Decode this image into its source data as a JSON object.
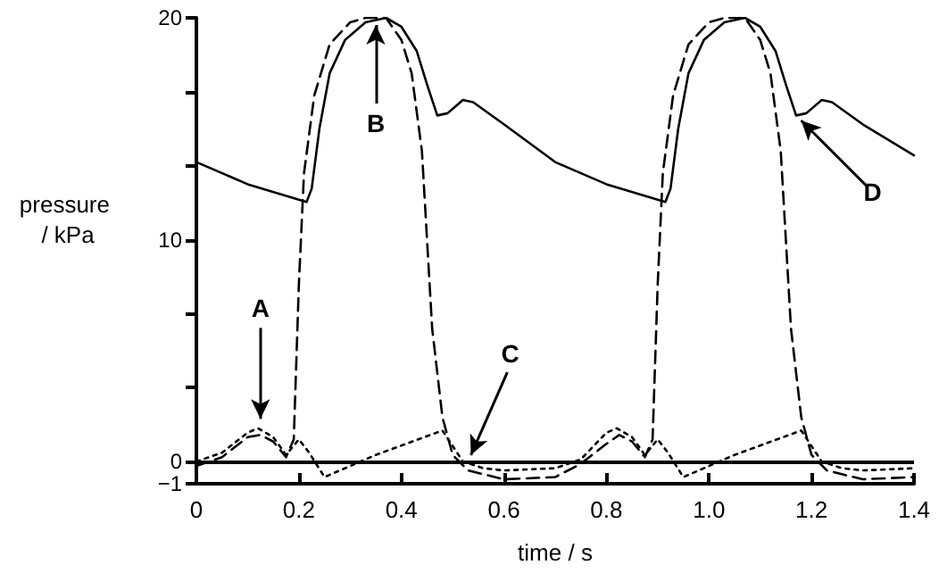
{
  "chart_data": {
    "type": "line",
    "xlabel": "time / s",
    "ylabel": "pressure / kPa",
    "xlim": [
      0,
      1.4
    ],
    "xticks": [
      0,
      0.2,
      0.4,
      0.6,
      0.8,
      {
        "value": 1,
        "label": "1.0"
      },
      1.2,
      1.4
    ],
    "ylim": [
      -1,
      20
    ],
    "yticks": [
      {
        "value": -1,
        "label": "−1"
      },
      0,
      {
        "value": 3.333,
        "label": null
      },
      {
        "value": 6.667,
        "label": null
      },
      10,
      {
        "value": 13.333,
        "label": null
      },
      {
        "value": 16.667,
        "label": null
      },
      20
    ],
    "grid": false,
    "marker": "none",
    "series": [
      {
        "color": "#000000",
        "line_style": "solid",
        "x": [
          0,
          0.1,
          0.2,
          0.215,
          0.225,
          0.24,
          0.26,
          0.29,
          0.33,
          0.37,
          0.4,
          0.43,
          0.45,
          0.47,
          0.49,
          0.52,
          0.54,
          0.6,
          0.7,
          0.8,
          0.9,
          0.915,
          0.925,
          0.94,
          0.96,
          0.99,
          1.03,
          1.07,
          1.1,
          1.13,
          1.15,
          1.17,
          1.19,
          1.22,
          1.24,
          1.3,
          1.4
        ],
        "values": [
          13.5,
          12.5,
          11.8,
          11.7,
          12.3,
          15,
          17.5,
          19,
          19.8,
          20,
          19.6,
          18.5,
          17,
          15.6,
          15.7,
          16.3,
          16.2,
          15.2,
          13.5,
          12.5,
          11.8,
          11.7,
          12.3,
          15,
          17.5,
          19,
          19.8,
          20,
          19.6,
          18.5,
          17,
          15.6,
          15.7,
          16.3,
          16.2,
          15.2,
          13.8
        ]
      },
      {
        "color": "#000000",
        "line_style": "dashed",
        "x": [
          0,
          0.05,
          0.1,
          0.125,
          0.15,
          0.175,
          0.19,
          0.2,
          0.21,
          0.23,
          0.26,
          0.3,
          0.33,
          0.37,
          0.4,
          0.42,
          0.44,
          0.46,
          0.48,
          0.5,
          0.53,
          0.6,
          0.7,
          0.75,
          0.8,
          0.825,
          0.85,
          0.875,
          0.89,
          0.9,
          0.91,
          0.93,
          0.96,
          1.0,
          1.03,
          1.07,
          1.1,
          1.12,
          1.14,
          1.16,
          1.18,
          1.2,
          1.23,
          1.3,
          1.4
        ],
        "values": [
          -0.2,
          0.2,
          1.1,
          1.2,
          0.9,
          0.2,
          1,
          8,
          13,
          16.5,
          18.8,
          19.8,
          20,
          20,
          19,
          17.5,
          14,
          6,
          2,
          0.3,
          -0.4,
          -0.8,
          -0.7,
          -0.1,
          0.8,
          1.2,
          0.9,
          0.2,
          1,
          8,
          13,
          16.5,
          18.8,
          19.8,
          20,
          20,
          19,
          17.5,
          14,
          6,
          2,
          0.3,
          -0.4,
          -0.8,
          -0.7
        ]
      },
      {
        "color": "#000000",
        "line_style": "dotted",
        "x": [
          0,
          0.05,
          0.1,
          0.12,
          0.15,
          0.175,
          0.2,
          0.22,
          0.25,
          0.35,
          0.48,
          0.5,
          0.52,
          0.56,
          0.6,
          0.7,
          0.75,
          0.8,
          0.82,
          0.85,
          0.875,
          0.9,
          0.92,
          0.95,
          1.05,
          1.18,
          1.2,
          1.22,
          1.26,
          1.3,
          1.4
        ],
        "values": [
          0,
          0.4,
          1.3,
          1.5,
          1.1,
          0.3,
          1,
          0.4,
          -0.7,
          0.3,
          1.4,
          0.7,
          0,
          -0.3,
          -0.4,
          -0.3,
          0.1,
          1.3,
          1.5,
          1.1,
          0.3,
          1,
          0.4,
          -0.7,
          0.3,
          1.4,
          0.7,
          0,
          -0.3,
          -0.4,
          -0.3
        ]
      }
    ],
    "ref_lines": [
      {
        "axis": "y",
        "value": 0,
        "color": "#000000",
        "line_style": "solid"
      }
    ],
    "annotations": [
      {
        "text": "A",
        "x": 0.125,
        "y": 1.6
      },
      {
        "text": "B",
        "x": 0.35,
        "y": 20
      },
      {
        "text": "C",
        "x": 0.53,
        "y": 0
      },
      {
        "text": "D",
        "x": 1.17,
        "y": 15.6
      }
    ]
  }
}
